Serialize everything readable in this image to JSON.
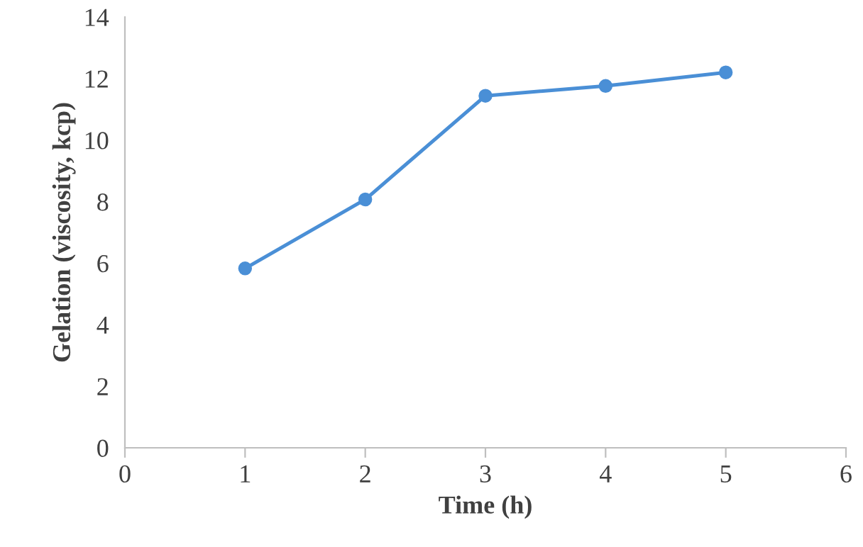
{
  "chart_data": {
    "type": "line",
    "xlabel": "Time (h)",
    "ylabel": "Gelation (viscosity, kcp)",
    "x": [
      1,
      2,
      3,
      4,
      5
    ],
    "series": [
      {
        "color": "#4a8fd6",
        "values": [
          5.83,
          8.07,
          11.44,
          11.76,
          12.2
        ]
      }
    ],
    "xlim": [
      0,
      6
    ],
    "xticks": [
      0,
      1,
      2,
      3,
      4,
      5,
      6
    ],
    "ylim": [
      0,
      14
    ],
    "yticks": [
      0,
      2,
      4,
      6,
      8,
      10,
      12,
      14
    ],
    "grid": false,
    "marker": "circle",
    "line_style": "solid"
  }
}
